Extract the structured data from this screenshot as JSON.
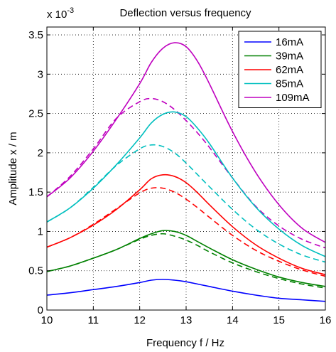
{
  "chart_data": {
    "type": "line",
    "title": "Deflection versus frequency",
    "xlabel": "Frequency f / Hz",
    "ylabel": "Amplitude x / m",
    "y_exponent_label": "x 10",
    "y_exponent_power": "-3",
    "xlim": [
      10,
      16
    ],
    "ylim": [
      0,
      0.0036
    ],
    "x_ticks": [
      10,
      11,
      12,
      13,
      14,
      15,
      16
    ],
    "x_tick_labels": [
      "10",
      "11",
      "12",
      "13",
      "14",
      "15",
      "16"
    ],
    "y_ticks": [
      0,
      0.0005,
      0.001,
      0.0015,
      0.002,
      0.0025,
      0.003,
      0.0035
    ],
    "y_tick_labels": [
      "0",
      "0.5",
      "1",
      "1.5",
      "2",
      "2.5",
      "3",
      "3.5"
    ],
    "grid": true,
    "legend_position": "top-right",
    "x": [
      10,
      10.5,
      11,
      11.5,
      12,
      12.25,
      12.5,
      12.75,
      13,
      13.25,
      13.5,
      14,
      14.5,
      15,
      15.5,
      16
    ],
    "series": [
      {
        "name": "16mA",
        "color": "#0000ff",
        "style": "solid",
        "values": [
          0.00019,
          0.00022,
          0.00026,
          0.0003,
          0.00035,
          0.00038,
          0.00039,
          0.00038,
          0.00036,
          0.00033,
          0.0003,
          0.00024,
          0.00019,
          0.00015,
          0.00013,
          0.00011
        ]
      },
      {
        "name": "39mA",
        "color": "#008000",
        "style": "solid",
        "values": [
          0.00049,
          0.00056,
          0.00066,
          0.00077,
          0.00091,
          0.00097,
          0.00101,
          0.001,
          0.00095,
          0.00087,
          0.00079,
          0.00064,
          0.00052,
          0.00042,
          0.00035,
          0.0003
        ]
      },
      {
        "name": "62mA",
        "color": "#ff0000",
        "style": "solid",
        "values": [
          0.0008,
          0.00092,
          0.00108,
          0.00128,
          0.00153,
          0.00167,
          0.00172,
          0.0017,
          0.00162,
          0.00149,
          0.00134,
          0.00106,
          0.00083,
          0.00066,
          0.00053,
          0.00045
        ]
      },
      {
        "name": "85mA",
        "color": "#00bfbf",
        "style": "solid",
        "values": [
          0.00112,
          0.0013,
          0.00155,
          0.00185,
          0.00219,
          0.00238,
          0.00249,
          0.00252,
          0.00246,
          0.00231,
          0.00212,
          0.00168,
          0.00131,
          0.00103,
          0.00082,
          0.00068
        ]
      },
      {
        "name": "109mA",
        "color": "#bf00bf",
        "style": "solid",
        "values": [
          0.00144,
          0.00168,
          0.00202,
          0.00243,
          0.00288,
          0.00315,
          0.00333,
          0.0034,
          0.00335,
          0.00316,
          0.00288,
          0.00227,
          0.00175,
          0.00134,
          0.00104,
          0.00086
        ]
      },
      {
        "name": "",
        "color": "#008000",
        "style": "dashed",
        "values": [
          0.00049,
          0.00056,
          0.00066,
          0.00077,
          0.0009,
          0.00095,
          0.00097,
          0.00094,
          0.00089,
          0.00082,
          0.00074,
          0.0006,
          0.00049,
          0.0004,
          0.00033,
          0.00028
        ]
      },
      {
        "name": "",
        "color": "#ff0000",
        "style": "dashed",
        "values": [
          0.0008,
          0.00092,
          0.00109,
          0.00129,
          0.00149,
          0.00155,
          0.00155,
          0.0015,
          0.00141,
          0.0013,
          0.00118,
          0.00095,
          0.00076,
          0.00062,
          0.00051,
          0.00043
        ]
      },
      {
        "name": "",
        "color": "#00bfbf",
        "style": "dashed",
        "values": [
          0.00112,
          0.0013,
          0.00156,
          0.00184,
          0.00205,
          0.0021,
          0.00208,
          0.002,
          0.00187,
          0.00172,
          0.00157,
          0.00128,
          0.00103,
          0.00084,
          0.0007,
          0.00061
        ]
      },
      {
        "name": "",
        "color": "#bf00bf",
        "style": "dashed",
        "values": [
          0.00144,
          0.0017,
          0.00205,
          0.00244,
          0.00265,
          0.00269,
          0.00265,
          0.00255,
          0.00241,
          0.00225,
          0.00207,
          0.00168,
          0.00132,
          0.00107,
          0.0009,
          0.00079
        ]
      }
    ]
  }
}
